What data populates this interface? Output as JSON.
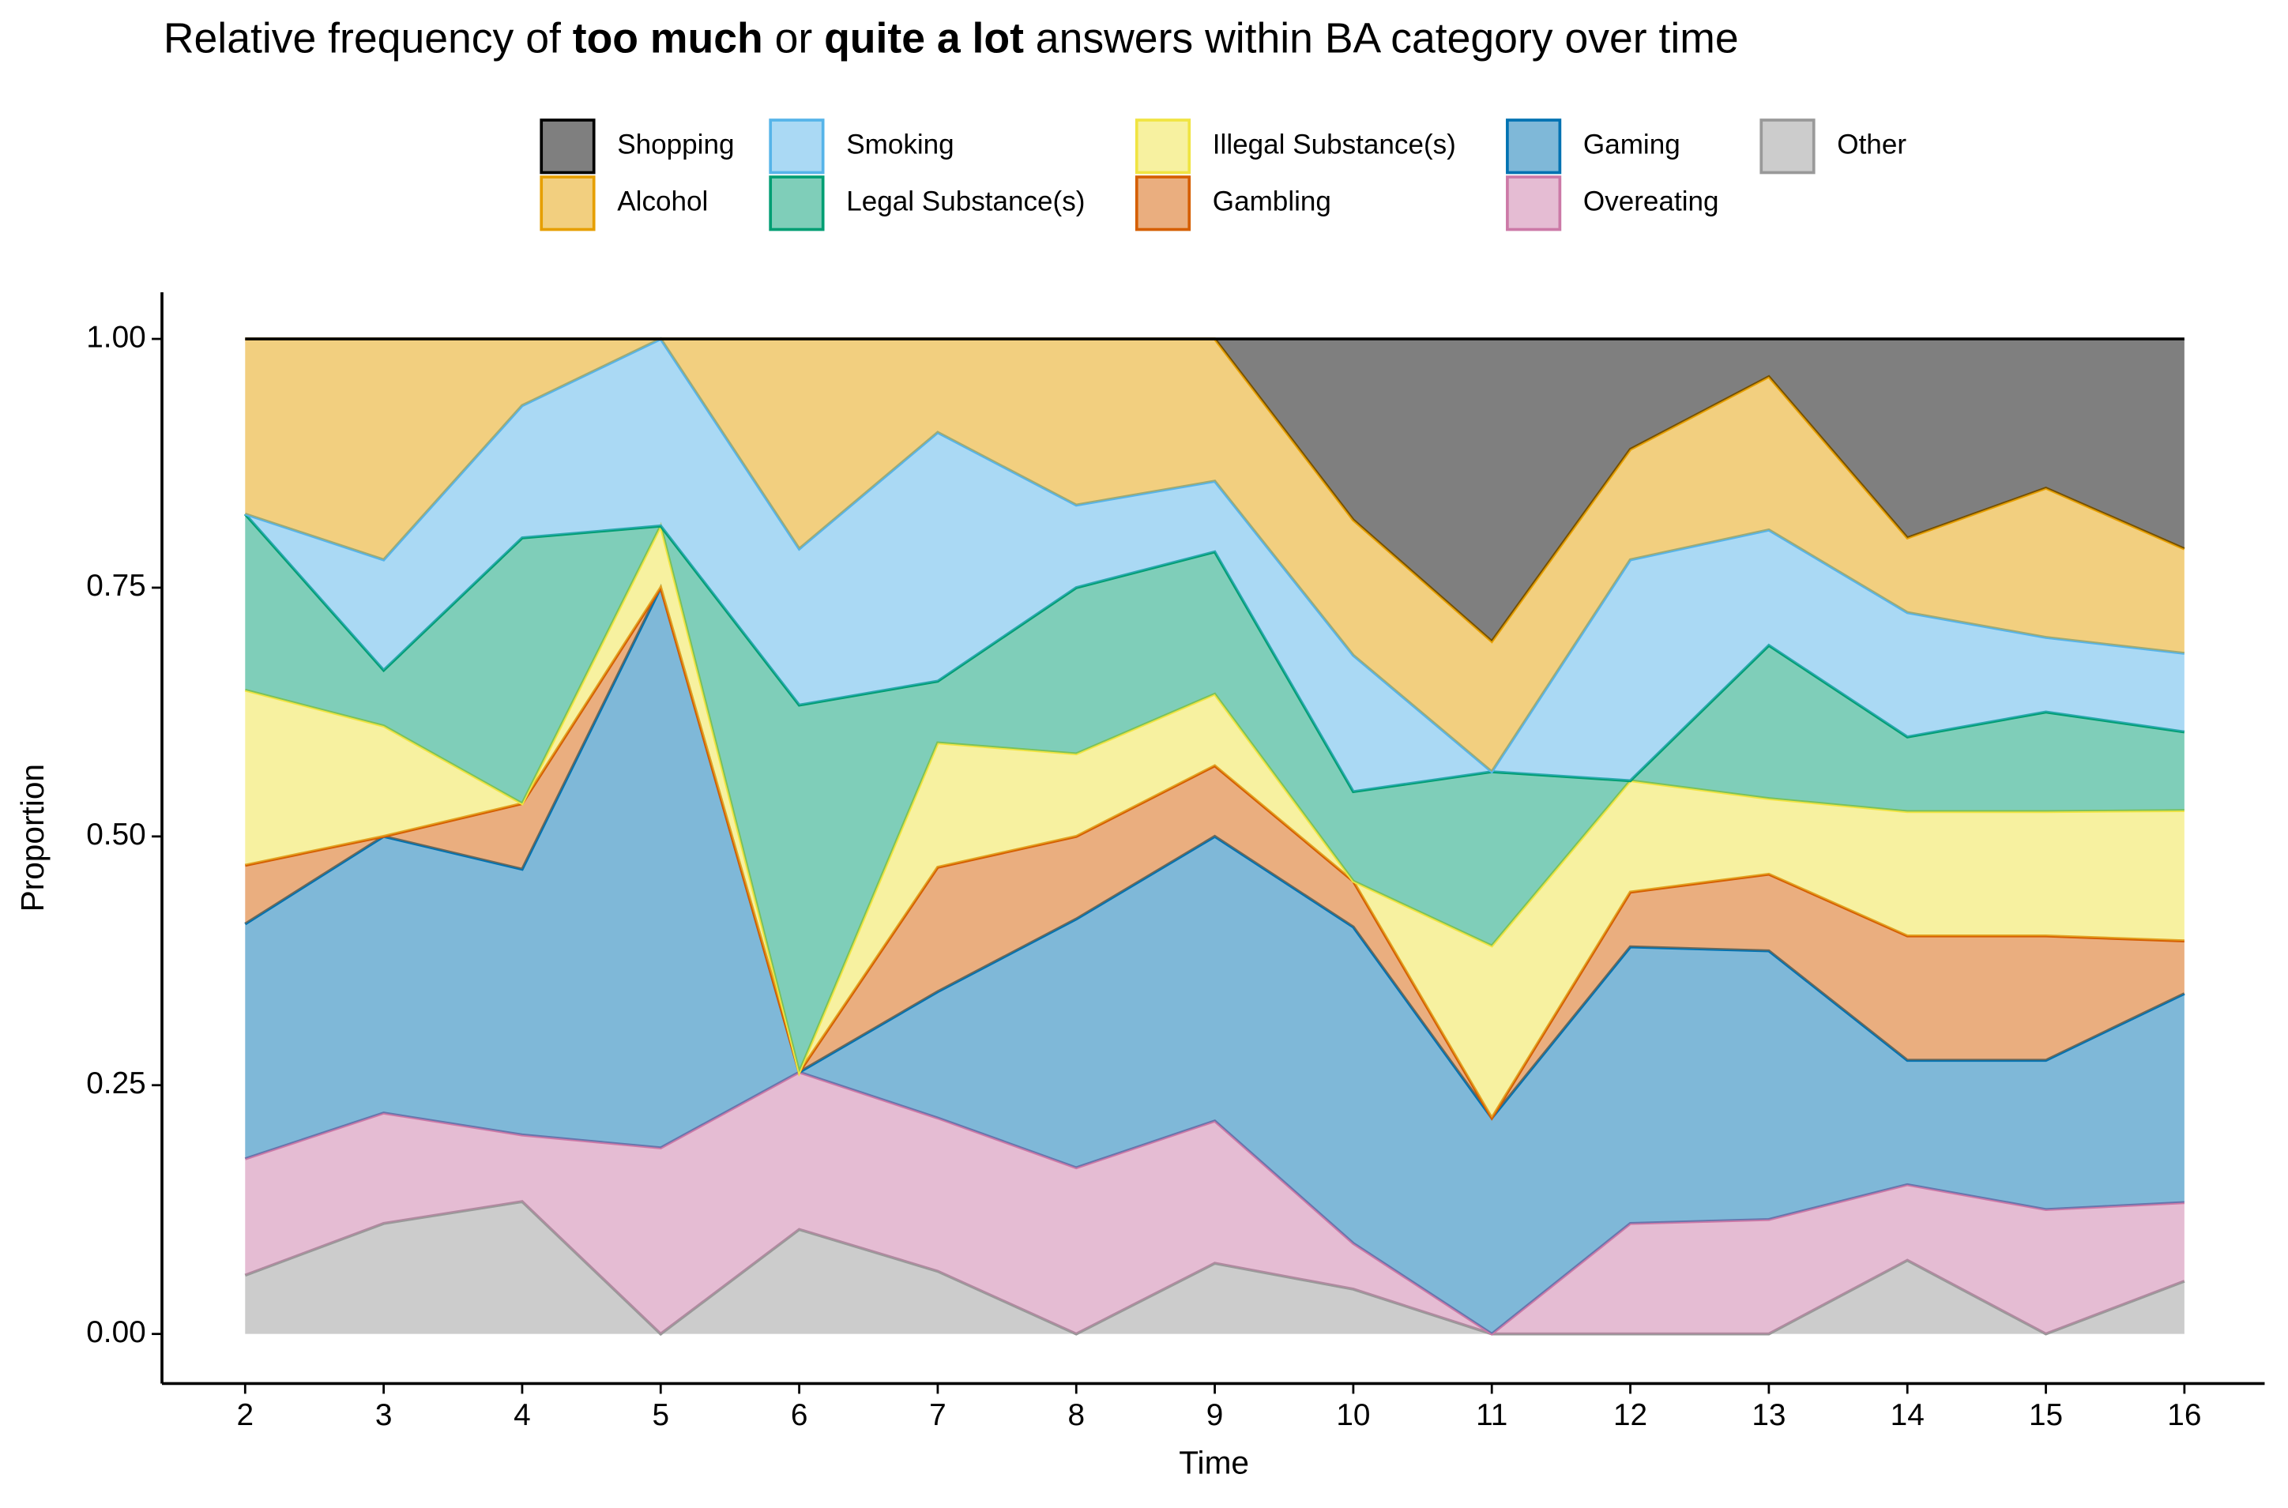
{
  "chart_data": {
    "type": "stacked_area",
    "title": [
      {
        "text": "Relative frequency of ",
        "bold": false
      },
      {
        "text": "too much",
        "bold": true
      },
      {
        "text": " or ",
        "bold": false
      },
      {
        "text": "quite a lot",
        "bold": true
      },
      {
        "text": " answers within BA category over time",
        "bold": false
      }
    ],
    "x_label": "Time",
    "y_label": "Proportion",
    "x": [
      2,
      3,
      4,
      5,
      6,
      7,
      8,
      9,
      10,
      11,
      12,
      13,
      14,
      15,
      16
    ],
    "xlim": [
      2,
      16
    ],
    "xticks": [
      2,
      3,
      4,
      5,
      6,
      7,
      8,
      9,
      10,
      11,
      12,
      13,
      14,
      15,
      16
    ],
    "ylim": [
      0,
      1
    ],
    "yticks": [
      {
        "value": 0,
        "label": "0.00"
      },
      {
        "value": 0.25,
        "label": "0.25"
      },
      {
        "value": 0.5,
        "label": "0.50"
      },
      {
        "value": 0.75,
        "label": "0.75"
      },
      {
        "value": 1,
        "label": "1.00"
      }
    ],
    "legend_position": "top",
    "series": [
      {
        "name": "Shopping",
        "color": "#000000",
        "values": [
          0,
          0,
          0,
          0,
          0,
          0,
          0,
          0,
          0.182,
          0.304,
          0.111,
          0.038,
          0.2,
          0.15,
          0.211
        ]
      },
      {
        "name": "Alcohol",
        "color": "#E69F00",
        "values": [
          0.176,
          0.222,
          0.067,
          0,
          0.211,
          0.094,
          0.167,
          0.143,
          0.136,
          0.131,
          0.111,
          0.154,
          0.075,
          0.15,
          0.105
        ]
      },
      {
        "name": "Smoking",
        "color": "#56B4E9",
        "values": [
          0,
          0.111,
          0.133,
          0.188,
          0.157,
          0.25,
          0.083,
          0.071,
          0.137,
          0,
          0.222,
          0.116,
          0.125,
          0.075,
          0.079
        ]
      },
      {
        "name": "Legal Substance(s)",
        "color": "#009E73",
        "values": [
          0.177,
          0.056,
          0.267,
          0,
          0.369,
          0.062,
          0.167,
          0.143,
          0.09,
          0.175,
          0,
          0.154,
          0.075,
          0.1,
          0.079
        ]
      },
      {
        "name": "Illegal Substance(s)",
        "color": "#F0E442",
        "values": [
          0.176,
          0.111,
          0,
          0.062,
          0,
          0.125,
          0.083,
          0.072,
          0,
          0.173,
          0.112,
          0.076,
          0.125,
          0.125,
          0.131
        ]
      },
      {
        "name": "Gambling",
        "color": "#D55E00",
        "values": [
          0.059,
          0,
          0.066,
          0,
          0,
          0.125,
          0.083,
          0.071,
          0.046,
          0,
          0.055,
          0.077,
          0.125,
          0.125,
          0.053
        ]
      },
      {
        "name": "Gaming",
        "color": "#0072B2",
        "values": [
          0.236,
          0.278,
          0.267,
          0.563,
          0,
          0.127,
          0.25,
          0.286,
          0.318,
          0.217,
          0.278,
          0.27,
          0.125,
          0.15,
          0.21
        ]
      },
      {
        "name": "Overeating",
        "color": "#CC79A7",
        "values": [
          0.117,
          0.111,
          0.067,
          0.187,
          0.158,
          0.154,
          0.167,
          0.143,
          0.046,
          0,
          0.111,
          0.115,
          0.076,
          0.125,
          0.079
        ]
      },
      {
        "name": "Other",
        "color": "#999999",
        "values": [
          0.059,
          0.111,
          0.133,
          0,
          0.105,
          0.063,
          0,
          0.071,
          0.045,
          0,
          0,
          0,
          0.074,
          0,
          0.053
        ]
      }
    ]
  }
}
